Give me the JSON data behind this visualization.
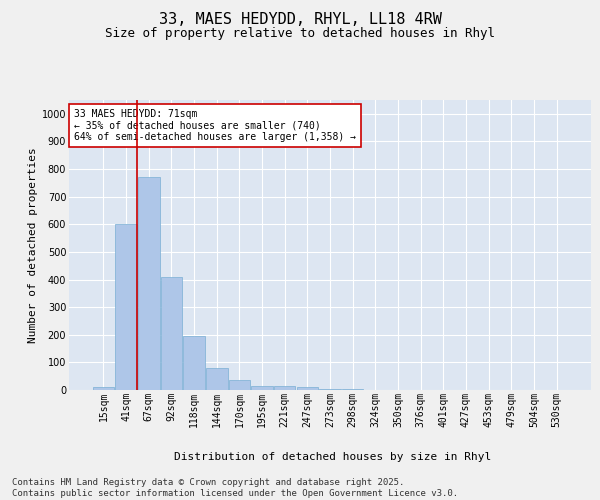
{
  "title1": "33, MAES HEDYDD, RHYL, LL18 4RW",
  "title2": "Size of property relative to detached houses in Rhyl",
  "xlabel": "Distribution of detached houses by size in Rhyl",
  "ylabel": "Number of detached properties",
  "categories": [
    "15sqm",
    "41sqm",
    "67sqm",
    "92sqm",
    "118sqm",
    "144sqm",
    "170sqm",
    "195sqm",
    "221sqm",
    "247sqm",
    "273sqm",
    "298sqm",
    "324sqm",
    "350sqm",
    "376sqm",
    "401sqm",
    "427sqm",
    "453sqm",
    "479sqm",
    "504sqm",
    "530sqm"
  ],
  "values": [
    10,
    600,
    770,
    410,
    195,
    80,
    38,
    15,
    15,
    10,
    5,
    2,
    0,
    0,
    0,
    0,
    0,
    0,
    0,
    0,
    0
  ],
  "bar_color": "#aec6e8",
  "bar_edge_color": "#7aafd4",
  "vline_x": 1.5,
  "vline_color": "#cc0000",
  "annotation_text": "33 MAES HEDYDD: 71sqm\n← 35% of detached houses are smaller (740)\n64% of semi-detached houses are larger (1,358) →",
  "annotation_box_color": "#ffffff",
  "annotation_box_edge": "#cc0000",
  "ylim": [
    0,
    1050
  ],
  "yticks": [
    0,
    100,
    200,
    300,
    400,
    500,
    600,
    700,
    800,
    900,
    1000
  ],
  "background_color": "#dde6f2",
  "grid_color": "#ffffff",
  "footer_line1": "Contains HM Land Registry data © Crown copyright and database right 2025.",
  "footer_line2": "Contains public sector information licensed under the Open Government Licence v3.0.",
  "title1_fontsize": 11,
  "title2_fontsize": 9,
  "xlabel_fontsize": 8,
  "ylabel_fontsize": 8,
  "tick_fontsize": 7,
  "annotation_fontsize": 7,
  "footer_fontsize": 6.5
}
